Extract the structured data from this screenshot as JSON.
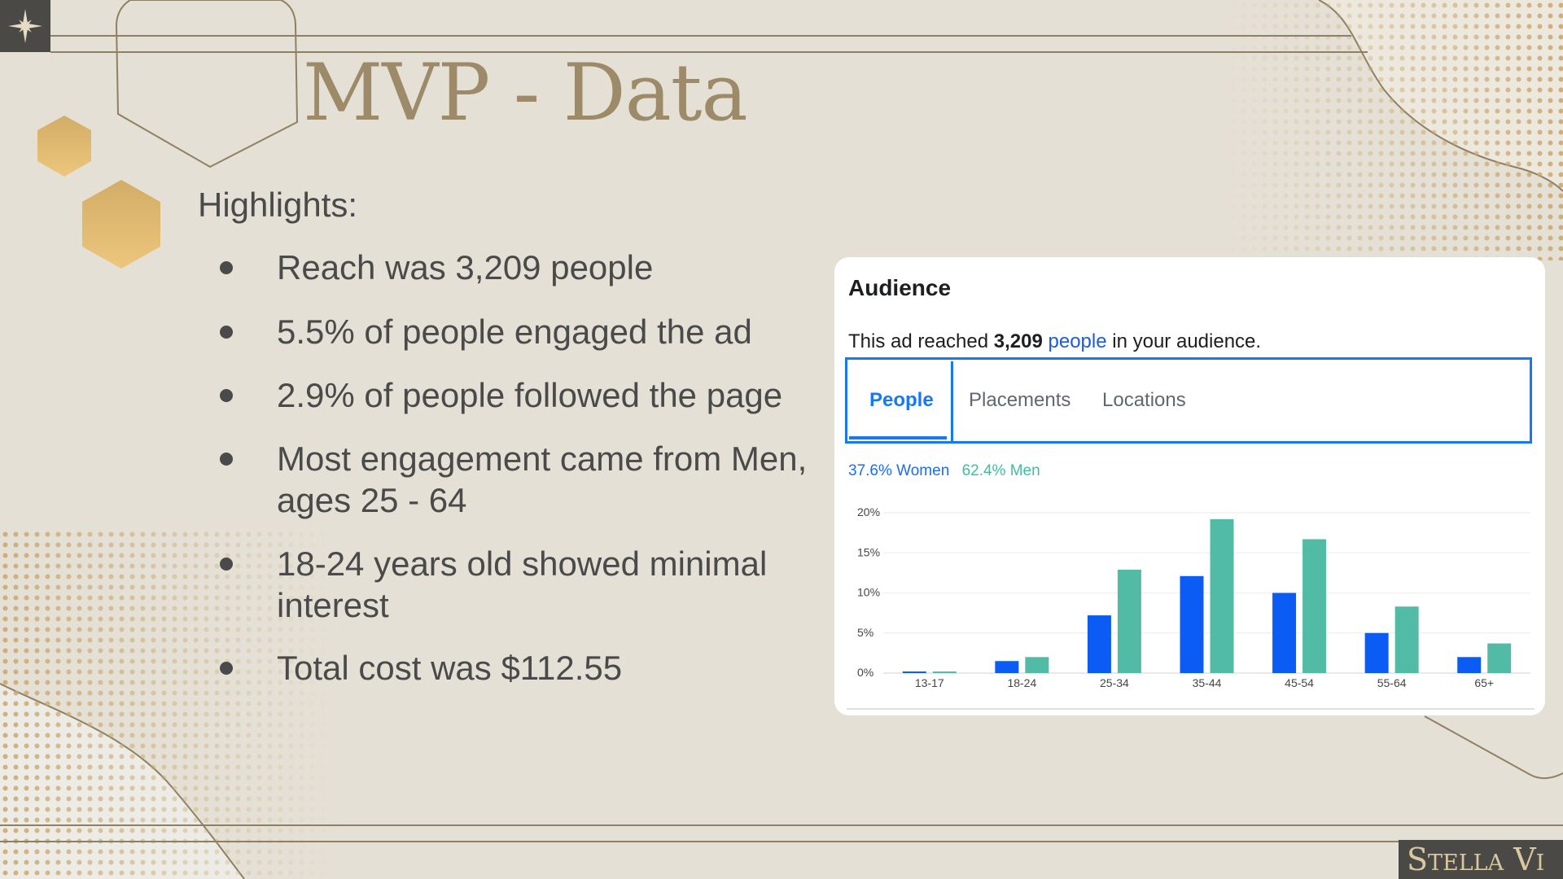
{
  "slide": {
    "title": "MVP - Data",
    "highlights_heading": "Highlights:",
    "bullets": [
      "Reach was 3,209 people",
      "5.5% of people engaged the ad",
      "2.9% of people followed the page",
      "Most engagement came from Men, ages 25 - 64",
      "18-24 years old showed minimal interest",
      "Total cost was $112.55"
    ],
    "brand": "Stella Vi",
    "colors": {
      "background": "#e4e0d5",
      "title": "#9c8a68",
      "body_text": "#4a4a4a",
      "gold": "#e2bf72",
      "badge": "#4a4946"
    },
    "icons": [
      "compass-star-icon"
    ]
  },
  "audience_card": {
    "title": "Audience",
    "reach_prefix": "This ad reached",
    "reach_number": "3,209",
    "reach_link": "people",
    "reach_suffix": "in your audience.",
    "tabs": [
      "People",
      "Placements",
      "Locations"
    ],
    "active_tab": "People",
    "legend_women": "37.6% Women",
    "legend_men": "62.4% Men"
  },
  "chart_data": {
    "type": "bar",
    "categories": [
      "13-17",
      "18-24",
      "25-34",
      "35-44",
      "45-54",
      "55-64",
      "65+"
    ],
    "series": [
      {
        "name": "Women",
        "color": "#0a5cf5",
        "values": [
          0.2,
          1.5,
          7.2,
          12.1,
          10.0,
          5.0,
          2.0
        ]
      },
      {
        "name": "Men",
        "color": "#52bba5",
        "values": [
          0.2,
          2.0,
          12.9,
          19.2,
          16.7,
          8.3,
          3.7
        ]
      }
    ],
    "y_ticks": [
      "0%",
      "5%",
      "10%",
      "15%",
      "20%"
    ],
    "ylim": [
      0,
      20
    ],
    "grid": true,
    "legend_position": "top-left"
  }
}
